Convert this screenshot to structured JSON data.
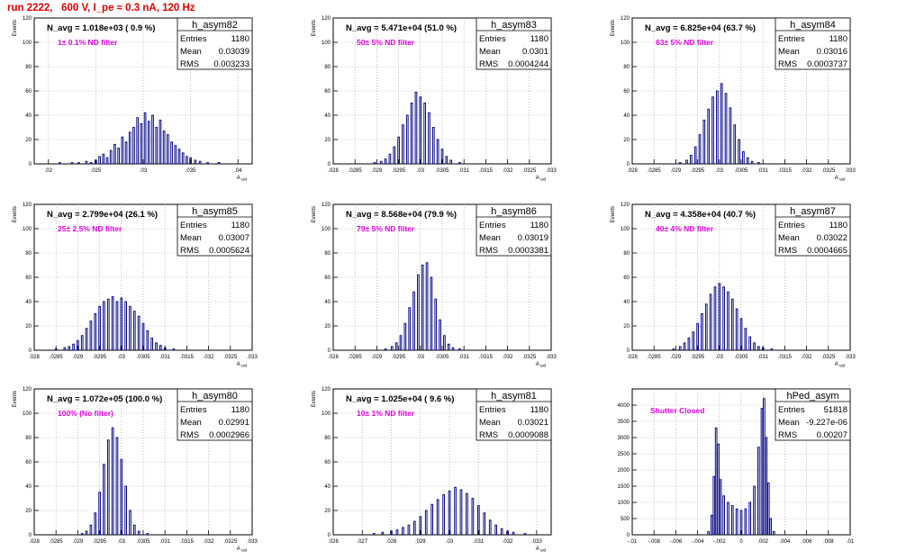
{
  "page": {
    "title": "run 2222,   600 V, I_pe ≈ 0.3 nA, 120 Hz"
  },
  "chart_data": [
    {
      "type": "histogram",
      "name": "h_asym82",
      "header": "N_avg = 1.018e+03 ( 0.9 %)",
      "annotation": "1± 0.1% ND filter",
      "stats": {
        "entries": "1180",
        "mean": "0.03039",
        "rms": "0.003233"
      },
      "ylabel": "Events",
      "xlabel": "A_uid",
      "xlim": [
        0.0185,
        0.0415
      ],
      "ylim": [
        0,
        120
      ],
      "xticks": [
        "0.02",
        "0.025",
        "0.03",
        "0.035",
        "0.04"
      ],
      "yticks": [
        "0",
        "20",
        "40",
        "60",
        "80",
        "100",
        "120"
      ],
      "bins": [
        [
          0.0212,
          1
        ],
        [
          0.0225,
          1
        ],
        [
          0.0232,
          1
        ],
        [
          0.024,
          2
        ],
        [
          0.0245,
          1
        ],
        [
          0.025,
          3
        ],
        [
          0.0254,
          6
        ],
        [
          0.0258,
          8
        ],
        [
          0.0262,
          5
        ],
        [
          0.0266,
          11
        ],
        [
          0.027,
          16
        ],
        [
          0.0274,
          13
        ],
        [
          0.0278,
          22
        ],
        [
          0.0282,
          18
        ],
        [
          0.0286,
          26
        ],
        [
          0.029,
          30
        ],
        [
          0.0294,
          38
        ],
        [
          0.0298,
          33
        ],
        [
          0.0302,
          42
        ],
        [
          0.0306,
          35
        ],
        [
          0.031,
          40
        ],
        [
          0.0314,
          30
        ],
        [
          0.0318,
          36
        ],
        [
          0.0322,
          27
        ],
        [
          0.0326,
          24
        ],
        [
          0.033,
          18
        ],
        [
          0.0334,
          15
        ],
        [
          0.0338,
          12
        ],
        [
          0.0342,
          9
        ],
        [
          0.0346,
          6
        ],
        [
          0.035,
          5
        ],
        [
          0.0355,
          3
        ],
        [
          0.036,
          2
        ],
        [
          0.0368,
          1
        ],
        [
          0.038,
          1
        ]
      ]
    },
    {
      "type": "histogram",
      "name": "h_asym83",
      "header": "N_avg = 5.471e+04 (51.0 %)",
      "annotation": "50± 5% ND filter",
      "stats": {
        "entries": "1180",
        "mean": "0.0301",
        "rms": "0.0004244"
      },
      "ylabel": "Events",
      "xlabel": "A_uid",
      "xlim": [
        0.028,
        0.033
      ],
      "ylim": [
        0,
        120
      ],
      "xticks": [
        "0.028",
        "0.0285",
        "0.029",
        "0.0295",
        "0.03",
        "0.0305",
        "0.031",
        "0.0315",
        "0.032",
        "0.0325",
        "0.033"
      ],
      "yticks": [
        "0",
        "20",
        "40",
        "60",
        "80",
        "100",
        "120"
      ],
      "bins": [
        [
          0.02895,
          1
        ],
        [
          0.0291,
          2
        ],
        [
          0.0292,
          4
        ],
        [
          0.0293,
          8
        ],
        [
          0.0294,
          14
        ],
        [
          0.0295,
          22
        ],
        [
          0.0296,
          32
        ],
        [
          0.0297,
          40
        ],
        [
          0.0298,
          50
        ],
        [
          0.0299,
          59
        ],
        [
          0.03,
          55
        ],
        [
          0.0301,
          50
        ],
        [
          0.0302,
          42
        ],
        [
          0.0303,
          30
        ],
        [
          0.0304,
          20
        ],
        [
          0.0305,
          12
        ],
        [
          0.0306,
          6
        ],
        [
          0.0307,
          3
        ],
        [
          0.0309,
          1
        ]
      ]
    },
    {
      "type": "histogram",
      "name": "h_asym84",
      "header": "N_avg = 6.825e+04 (63.7 %)",
      "annotation": "63± 5% ND filter",
      "stats": {
        "entries": "1180",
        "mean": "0.03016",
        "rms": "0.0003737"
      },
      "ylabel": "Events",
      "xlabel": "A_uid",
      "xlim": [
        0.028,
        0.033
      ],
      "ylim": [
        0,
        120
      ],
      "xticks": [
        "0.028",
        "0.0285",
        "0.029",
        "0.0295",
        "0.03",
        "0.0305",
        "0.031",
        "0.0315",
        "0.032",
        "0.0325",
        "0.033"
      ],
      "yticks": [
        "0",
        "20",
        "40",
        "60",
        "80",
        "100",
        "120"
      ],
      "bins": [
        [
          0.0291,
          1
        ],
        [
          0.02925,
          3
        ],
        [
          0.02935,
          7
        ],
        [
          0.02945,
          14
        ],
        [
          0.02955,
          24
        ],
        [
          0.02965,
          36
        ],
        [
          0.02975,
          45
        ],
        [
          0.02985,
          55
        ],
        [
          0.02995,
          60
        ],
        [
          0.03005,
          66
        ],
        [
          0.03015,
          58
        ],
        [
          0.03025,
          46
        ],
        [
          0.03035,
          32
        ],
        [
          0.03045,
          20
        ],
        [
          0.03055,
          10
        ],
        [
          0.03065,
          5
        ],
        [
          0.03075,
          2
        ],
        [
          0.0309,
          1
        ]
      ]
    },
    {
      "type": "histogram",
      "name": "h_asym85",
      "header": "N_avg = 2.799e+04 (26.1 %)",
      "annotation": "25± 2.5% ND filter",
      "stats": {
        "entries": "1180",
        "mean": "0.03007",
        "rms": "0.0005624"
      },
      "ylabel": "Events",
      "xlabel": "A_uid",
      "xlim": [
        0.028,
        0.033
      ],
      "ylim": [
        0,
        120
      ],
      "xticks": [
        "0.028",
        "0.0285",
        "0.029",
        "0.0295",
        "0.03",
        "0.0305",
        "0.031",
        "0.0315",
        "0.032",
        "0.0325",
        "0.033"
      ],
      "yticks": [
        "0",
        "20",
        "40",
        "60",
        "80",
        "100",
        "120"
      ],
      "bins": [
        [
          0.0285,
          1
        ],
        [
          0.0287,
          2
        ],
        [
          0.0288,
          3
        ],
        [
          0.0289,
          5
        ],
        [
          0.029,
          8
        ],
        [
          0.0291,
          12
        ],
        [
          0.0292,
          18
        ],
        [
          0.0293,
          24
        ],
        [
          0.0294,
          30
        ],
        [
          0.0295,
          36
        ],
        [
          0.0296,
          40
        ],
        [
          0.0297,
          42
        ],
        [
          0.0298,
          44
        ],
        [
          0.0299,
          40
        ],
        [
          0.03,
          43
        ],
        [
          0.0301,
          40
        ],
        [
          0.0302,
          36
        ],
        [
          0.0303,
          32
        ],
        [
          0.0304,
          28
        ],
        [
          0.0305,
          22
        ],
        [
          0.0306,
          16
        ],
        [
          0.0307,
          10
        ],
        [
          0.0308,
          6
        ],
        [
          0.0309,
          4
        ],
        [
          0.031,
          2
        ],
        [
          0.0312,
          1
        ]
      ]
    },
    {
      "type": "histogram",
      "name": "h_asym86",
      "header": "N_avg = 8.568e+04 (79.9 %)",
      "annotation": "79± 5% ND filter",
      "stats": {
        "entries": "1180",
        "mean": "0.03019",
        "rms": "0.0003381"
      },
      "ylabel": "Events",
      "xlabel": "A_uid",
      "xlim": [
        0.028,
        0.033
      ],
      "ylim": [
        0,
        120
      ],
      "xticks": [
        "0.028",
        "0.0285",
        "0.029",
        "0.0295",
        "0.03",
        "0.0305",
        "0.031",
        "0.0315",
        "0.032",
        "0.0325",
        "0.033"
      ],
      "yticks": [
        "0",
        "20",
        "40",
        "60",
        "80",
        "100",
        "120"
      ],
      "bins": [
        [
          0.0292,
          1
        ],
        [
          0.02935,
          3
        ],
        [
          0.02945,
          6
        ],
        [
          0.02955,
          12
        ],
        [
          0.02965,
          22
        ],
        [
          0.02975,
          35
        ],
        [
          0.02985,
          48
        ],
        [
          0.02995,
          62
        ],
        [
          0.03005,
          70
        ],
        [
          0.03015,
          72
        ],
        [
          0.03025,
          60
        ],
        [
          0.03035,
          42
        ],
        [
          0.03045,
          25
        ],
        [
          0.03055,
          12
        ],
        [
          0.03065,
          5
        ],
        [
          0.03075,
          2
        ],
        [
          0.0309,
          1
        ]
      ]
    },
    {
      "type": "histogram",
      "name": "h_asym87",
      "header": "N_avg = 4.358e+04 (40.7 %)",
      "annotation": "40± 4% ND filter",
      "stats": {
        "entries": "1180",
        "mean": "0.03022",
        "rms": "0.0004665"
      },
      "ylabel": "Events",
      "xlabel": "A_uid",
      "xlim": [
        0.028,
        0.033
      ],
      "ylim": [
        0,
        120
      ],
      "xticks": [
        "0.028",
        "0.0285",
        "0.029",
        "0.0295",
        "0.03",
        "0.0305",
        "0.031",
        "0.0315",
        "0.032",
        "0.0325",
        "0.033"
      ],
      "yticks": [
        "0",
        "20",
        "40",
        "60",
        "80",
        "100",
        "120"
      ],
      "bins": [
        [
          0.02895,
          1
        ],
        [
          0.0291,
          3
        ],
        [
          0.0292,
          6
        ],
        [
          0.0293,
          10
        ],
        [
          0.0294,
          15
        ],
        [
          0.0295,
          22
        ],
        [
          0.0296,
          30
        ],
        [
          0.0297,
          38
        ],
        [
          0.0298,
          46
        ],
        [
          0.0299,
          52
        ],
        [
          0.03,
          55
        ],
        [
          0.0301,
          52
        ],
        [
          0.0302,
          48
        ],
        [
          0.0303,
          42
        ],
        [
          0.0304,
          34
        ],
        [
          0.0305,
          26
        ],
        [
          0.0306,
          18
        ],
        [
          0.0307,
          11
        ],
        [
          0.0308,
          6
        ],
        [
          0.0309,
          3
        ],
        [
          0.031,
          2
        ],
        [
          0.0312,
          1
        ]
      ]
    },
    {
      "type": "histogram",
      "name": "h_asym80",
      "header": "N_avg = 1.072e+05 (100.0 %)",
      "annotation": "100% (No filter)",
      "stats": {
        "entries": "1180",
        "mean": "0.02991",
        "rms": "0.0002966"
      },
      "ylabel": "Events",
      "xlabel": "A_uid",
      "xlim": [
        0.028,
        0.033
      ],
      "ylim": [
        0,
        120
      ],
      "xticks": [
        "0.028",
        "0.0285",
        "0.029",
        "0.0295",
        "0.03",
        "0.0305",
        "0.031",
        "0.0315",
        "0.032",
        "0.0325",
        "0.033"
      ],
      "yticks": [
        "0",
        "20",
        "40",
        "60",
        "80",
        "100",
        "120"
      ],
      "bins": [
        [
          0.0291,
          1
        ],
        [
          0.0292,
          3
        ],
        [
          0.0293,
          8
        ],
        [
          0.0294,
          18
        ],
        [
          0.0295,
          35
        ],
        [
          0.0296,
          58
        ],
        [
          0.0297,
          78
        ],
        [
          0.0298,
          88
        ],
        [
          0.0299,
          80
        ],
        [
          0.03,
          62
        ],
        [
          0.0301,
          40
        ],
        [
          0.0302,
          20
        ],
        [
          0.0303,
          8
        ],
        [
          0.0304,
          3
        ],
        [
          0.0306,
          1
        ]
      ]
    },
    {
      "type": "histogram",
      "name": "h_asym81",
      "header": "N_avg = 1.025e+04 ( 9.6 %)",
      "annotation": "10± 1% ND filter",
      "stats": {
        "entries": "1180",
        "mean": "0.03021",
        "rms": "0.0009088"
      },
      "ylabel": "Events",
      "xlabel": "A_uid",
      "xlim": [
        0.026,
        0.0335
      ],
      "ylim": [
        0,
        120
      ],
      "xticks": [
        "0.026",
        "0.027",
        "0.028",
        "0.029",
        "0.03",
        "0.031",
        "0.032",
        "0.033"
      ],
      "yticks": [
        "0",
        "20",
        "40",
        "60",
        "80",
        "100",
        "120"
      ],
      "bins": [
        [
          0.0274,
          1
        ],
        [
          0.0277,
          2
        ],
        [
          0.028,
          3
        ],
        [
          0.0282,
          4
        ],
        [
          0.0284,
          6
        ],
        [
          0.0286,
          8
        ],
        [
          0.0288,
          11
        ],
        [
          0.029,
          15
        ],
        [
          0.0292,
          20
        ],
        [
          0.0294,
          25
        ],
        [
          0.0296,
          29
        ],
        [
          0.0298,
          33
        ],
        [
          0.03,
          36
        ],
        [
          0.0302,
          39
        ],
        [
          0.0304,
          37
        ],
        [
          0.0306,
          34
        ],
        [
          0.0308,
          30
        ],
        [
          0.031,
          24
        ],
        [
          0.0312,
          18
        ],
        [
          0.0314,
          12
        ],
        [
          0.0316,
          8
        ],
        [
          0.0318,
          5
        ],
        [
          0.032,
          3
        ],
        [
          0.0322,
          2
        ],
        [
          0.0326,
          1
        ]
      ]
    },
    {
      "type": "histogram",
      "name": "hPed_asym",
      "header": "",
      "annotation": "Shutter Closed",
      "stats": {
        "entries": "51818",
        "mean": "-9.227e-06",
        "rms": "0.00207"
      },
      "ylabel": "",
      "xlabel": "",
      "xlim": [
        -0.01,
        0.01
      ],
      "ylim": [
        0,
        4500
      ],
      "xticks": [
        "-0.01",
        "-0.008",
        "-0.006",
        "-0.004",
        "-0.002",
        "0",
        "0.002",
        "0.004",
        "0.006",
        "0.008",
        "0.01"
      ],
      "yticks": [
        "0",
        "500",
        "1000",
        "1500",
        "2000",
        "2500",
        "3000",
        "3500",
        "4000"
      ],
      "bins": [
        [
          -0.003,
          100
        ],
        [
          -0.0027,
          600
        ],
        [
          -0.0025,
          1800
        ],
        [
          -0.0023,
          3300
        ],
        [
          -0.0021,
          2800
        ],
        [
          -0.0019,
          1700
        ],
        [
          -0.0016,
          1200
        ],
        [
          -0.0012,
          1000
        ],
        [
          -0.0008,
          900
        ],
        [
          -0.0004,
          800
        ],
        [
          0.0,
          750
        ],
        [
          0.0004,
          800
        ],
        [
          0.0008,
          1000
        ],
        [
          0.0012,
          1500
        ],
        [
          0.0016,
          2700
        ],
        [
          0.0019,
          3900
        ],
        [
          0.0021,
          4200
        ],
        [
          0.0023,
          3000
        ],
        [
          0.0025,
          1600
        ],
        [
          0.0027,
          500
        ],
        [
          0.003,
          100
        ]
      ]
    }
  ]
}
